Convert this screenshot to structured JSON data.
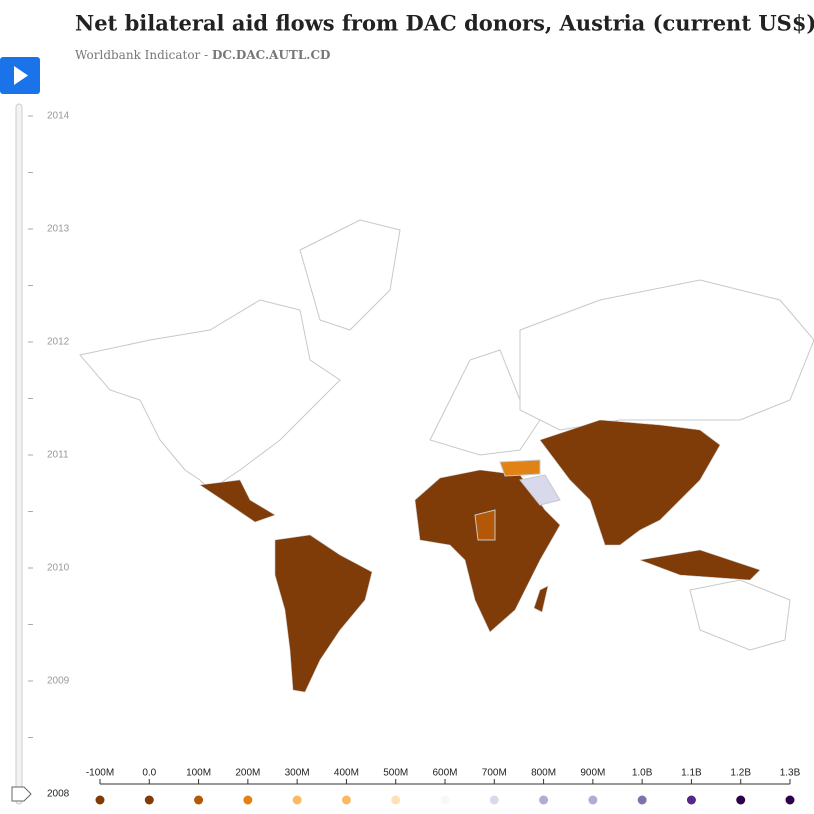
{
  "chart_data": {
    "type": "map",
    "title": "Net bilateral aid flows from DAC donors, Austria (current US$)",
    "subtitle": "Worldbank Indicator - ",
    "indicator_code": "DC.DAC.AUTL.CD",
    "legend": {
      "xlim": [
        -100000000,
        1300000000
      ],
      "ticks": [
        {
          "value": -100000000,
          "label": "-100M"
        },
        {
          "value": 0,
          "label": "0.0"
        },
        {
          "value": 100000000,
          "label": "100M"
        },
        {
          "value": 200000000,
          "label": "200M"
        },
        {
          "value": 300000000,
          "label": "300M"
        },
        {
          "value": 400000000,
          "label": "400M"
        },
        {
          "value": 500000000,
          "label": "500M"
        },
        {
          "value": 600000000,
          "label": "600M"
        },
        {
          "value": 700000000,
          "label": "700M"
        },
        {
          "value": 800000000,
          "label": "800M"
        },
        {
          "value": 900000000,
          "label": "900M"
        },
        {
          "value": 1000000000,
          "label": "1.0B"
        },
        {
          "value": 1100000000,
          "label": "1.1B"
        },
        {
          "value": 1200000000,
          "label": "1.2B"
        },
        {
          "value": 1300000000,
          "label": "1.3B"
        }
      ],
      "colors": [
        "#7f3b08",
        "#7f3b08",
        "#b35806",
        "#e08214",
        "#fdb863",
        "#fdb863",
        "#fee0b6",
        "#f7f7f7",
        "#d8daeb",
        "#b2abd2",
        "#b2abd2",
        "#8073ac",
        "#542788",
        "#2d004b",
        "#2d004b"
      ]
    },
    "timeline": {
      "ylim": [
        2008,
        2014
      ],
      "yticks": [
        2009,
        2010,
        2011,
        2012,
        2013,
        2014
      ],
      "value": 2008
    }
  }
}
